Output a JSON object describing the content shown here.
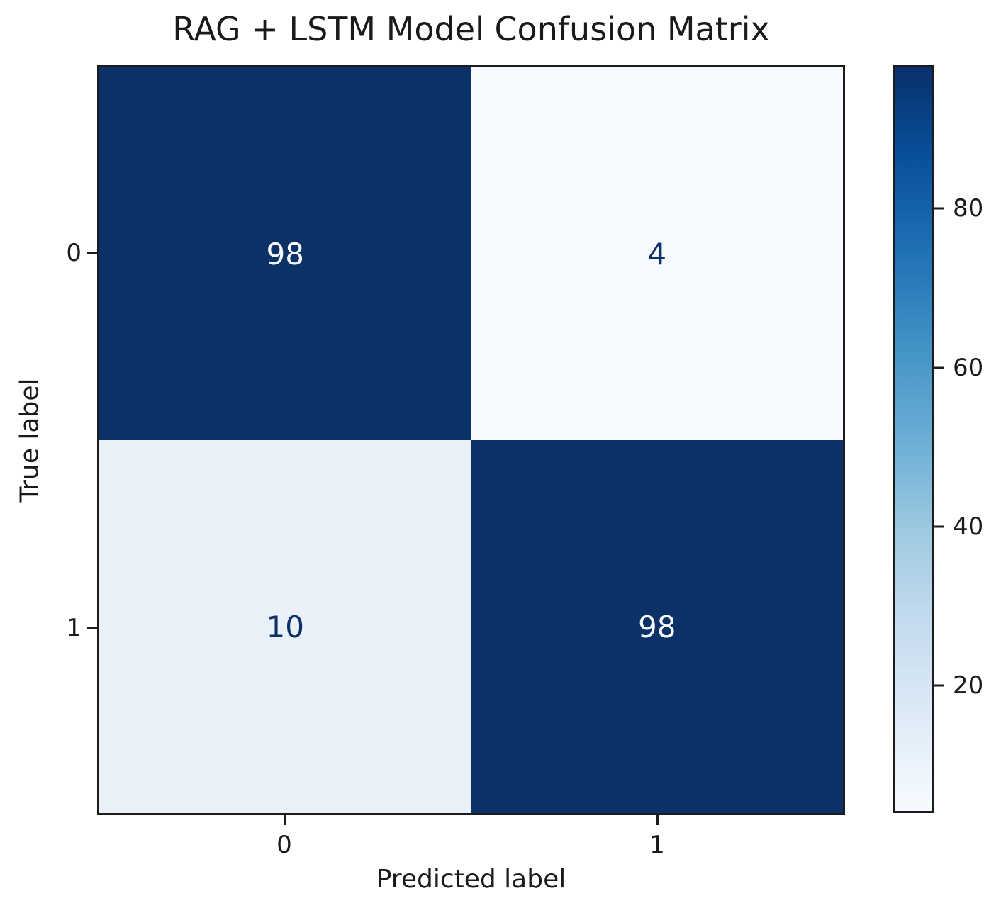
{
  "chart_data": {
    "type": "heatmap",
    "title": "RAG + LSTM Model Confusion Matrix",
    "xlabel": "Predicted label",
    "ylabel": "True label",
    "x_tick_labels": [
      "0",
      "1"
    ],
    "y_tick_labels": [
      "0",
      "1"
    ],
    "categories_note": "rows = true label (0,1), columns = predicted label (0,1)",
    "matrix": [
      [
        98,
        4
      ],
      [
        10,
        98
      ]
    ],
    "colorbar": {
      "ticks": [
        20,
        40,
        60,
        80
      ],
      "vmin": 4,
      "vmax": 98,
      "colormap": "Blues",
      "position": "right"
    },
    "grid": false,
    "legend": false
  },
  "colors": {
    "figure_background": "#ffffff",
    "cell_dark": "#0b3166",
    "cell_light_value4": "#f6fafe",
    "cell_light_value10": "#e9f0f8",
    "text_on_dark": "#f7fbff",
    "text_on_light": "#0b3166",
    "axis_text": "#1a1a1a",
    "spine": "#1c1c1c",
    "blues_scale": [
      "#f7fbff",
      "#deebf7",
      "#c6dbef",
      "#9ecae1",
      "#6baed6",
      "#4292c6",
      "#2171b5",
      "#08519c",
      "#08306b"
    ]
  }
}
